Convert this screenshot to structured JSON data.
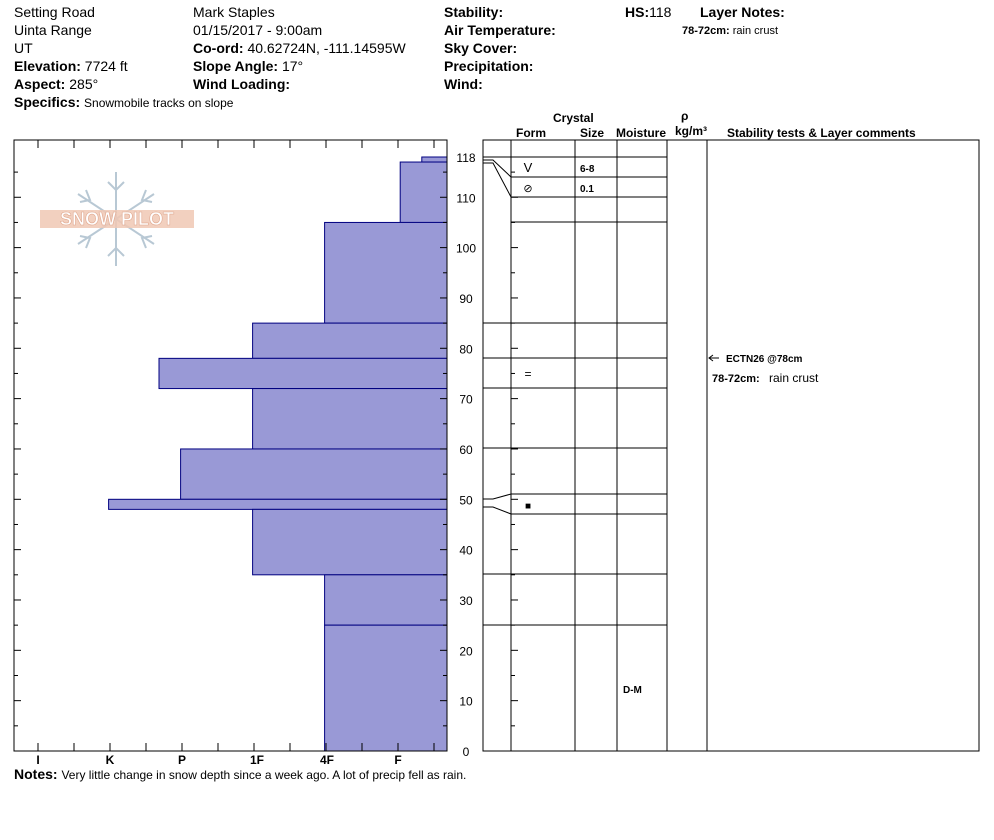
{
  "header": {
    "location": "Setting Road",
    "range": "Uinta Range",
    "state": "UT",
    "elevation_label": "Elevation:",
    "elevation_value": "7724 ft",
    "aspect_label": "Aspect:",
    "aspect_value": "285°",
    "specifics_label": "Specifics:",
    "specifics_value": "Snowmobile tracks on slope",
    "observer": "Mark Staples",
    "datetime": "01/15/2017 - 9:00am",
    "coord_label": "Co-ord:",
    "coord_value": "40.62724N, -111.14595W",
    "slope_label": "Slope Angle:",
    "slope_value": "17°",
    "wind_loading_label": "Wind Loading:",
    "stability_label": "Stability:",
    "air_temp_label": "Air Temperature:",
    "sky_cover_label": "Sky Cover:",
    "precip_label": "Precipitation:",
    "wind_label": "Wind:",
    "hs_label": "HS:",
    "hs_value": "118",
    "layer_notes_label": "Layer Notes:",
    "layer_notes_range": "78-72cm:",
    "layer_notes_text": "rain crust"
  },
  "logo_text": "SNOW PILOT",
  "table_headers": {
    "crystal": "Crystal",
    "form": "Form",
    "size": "Size",
    "moisture": "Moisture",
    "rho": "ρ",
    "density_unit": "kg/m³",
    "stability": "Stability tests & Layer comments"
  },
  "layer_details": [
    {
      "form": "V",
      "size": "6-8"
    },
    {
      "form": "⊘",
      "size": "0.1"
    },
    {
      "form": "="
    },
    {
      "form": "■"
    },
    {
      "moisture": "D-M"
    }
  ],
  "stability_notes": {
    "test": "ECTN26 @78cm",
    "layer_range": "78-72cm:",
    "layer_text": "rain crust"
  },
  "notes": {
    "label": "Notes:",
    "text": "Very little change in snow depth since a week ago. A lot of precip fell as rain."
  },
  "colors": {
    "bar_fill": "#9999d6",
    "bar_stroke": "#000080"
  },
  "chart_data": {
    "type": "bar",
    "orientation": "horizontal",
    "hardness_scale": [
      "I",
      "K",
      "P",
      "1F",
      "4F",
      "F"
    ],
    "depth_ticks": [
      0,
      10,
      20,
      30,
      40,
      50,
      60,
      70,
      80,
      90,
      100,
      110,
      118
    ],
    "ylim": [
      0,
      118
    ],
    "layers": [
      {
        "top": 118,
        "bottom": 117,
        "hardness": "F+",
        "hardness_index": 0.35
      },
      {
        "top": 117,
        "bottom": 105,
        "hardness": "F+",
        "hardness_index": 0.65
      },
      {
        "top": 105,
        "bottom": 85,
        "hardness": "4F",
        "hardness_index": 1.7
      },
      {
        "top": 85,
        "bottom": 78,
        "hardness": "1F",
        "hardness_index": 2.7
      },
      {
        "top": 78,
        "bottom": 72,
        "hardness": "K",
        "hardness_index": 4.0
      },
      {
        "top": 72,
        "bottom": 60,
        "hardness": "1F",
        "hardness_index": 2.7
      },
      {
        "top": 60,
        "bottom": 50,
        "hardness": "P+",
        "hardness_index": 3.7
      },
      {
        "top": 50,
        "bottom": 48,
        "hardness": "K+",
        "hardness_index": 4.7
      },
      {
        "top": 48,
        "bottom": 35,
        "hardness": "1F",
        "hardness_index": 2.7
      },
      {
        "top": 35,
        "bottom": 25,
        "hardness": "4F",
        "hardness_index": 1.7
      },
      {
        "top": 25,
        "bottom": 0,
        "hardness": "4F",
        "hardness_index": 1.7
      }
    ]
  }
}
